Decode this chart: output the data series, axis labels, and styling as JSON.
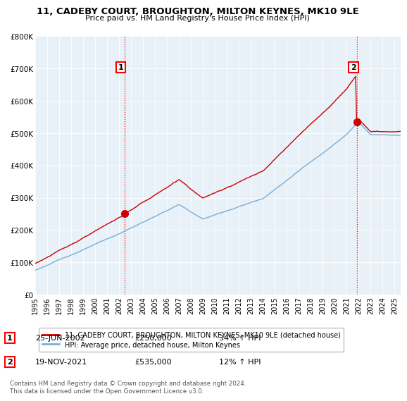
{
  "title": "11, CADEBY COURT, BROUGHTON, MILTON KEYNES, MK10 9LE",
  "subtitle": "Price paid vs. HM Land Registry's House Price Index (HPI)",
  "legend_line1": "11, CADEBY COURT, BROUGHTON, MILTON KEYNES, MK10 9LE (detached house)",
  "legend_line2": "HPI: Average price, detached house, Milton Keynes",
  "sale1_date": "25-JUN-2002",
  "sale1_price": 250000,
  "sale1_label": "34% ↑ HPI",
  "sale2_date": "19-NOV-2021",
  "sale2_price": 535000,
  "sale2_label": "12% ↑ HPI",
  "copyright": "Contains HM Land Registry data © Crown copyright and database right 2024.\nThis data is licensed under the Open Government Licence v3.0.",
  "hpi_color": "#7bafd4",
  "price_color": "#cc0000",
  "bg_color": "#e8f0f8",
  "ylim": [
    0,
    800000
  ],
  "yticks": [
    0,
    100000,
    200000,
    300000,
    400000,
    500000,
    600000,
    700000,
    800000
  ],
  "sale1_t": 2002.458,
  "sale2_t": 2021.875
}
